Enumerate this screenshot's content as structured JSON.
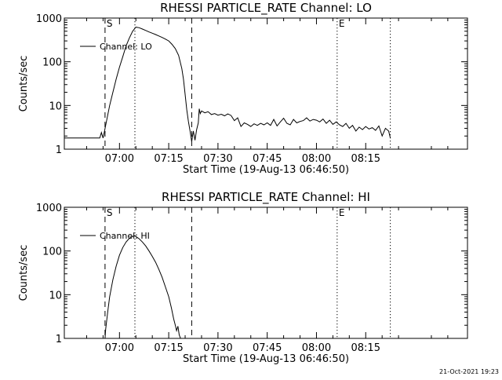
{
  "footer": {
    "timestamp": "21-Oct-2021 19:23"
  },
  "chart_data": [
    {
      "type": "line",
      "title": "RHESSI PARTICLE_RATE Channel: LO",
      "xlabel": "Start Time (19-Aug-13 06:46:50)",
      "ylabel": "Counts/sec",
      "yscale": "log",
      "ylim": [
        1,
        1000
      ],
      "xlim_minutes": [
        -16.8,
        106
      ],
      "x_ticks": [
        {
          "t": 0,
          "label": "07:00"
        },
        {
          "t": 15,
          "label": "07:15"
        },
        {
          "t": 30,
          "label": "07:30"
        },
        {
          "t": 45,
          "label": "07:45"
        },
        {
          "t": 60,
          "label": "08:00"
        },
        {
          "t": 75,
          "label": "08:15"
        }
      ],
      "y_ticks": [
        {
          "v": 1,
          "label": "1"
        },
        {
          "v": 10,
          "label": "10"
        },
        {
          "v": 100,
          "label": "100"
        },
        {
          "v": 1000,
          "label": "1000"
        }
      ],
      "legend": {
        "label": "Channel: LO",
        "position": "top-left"
      },
      "markers": [
        {
          "t": -4.4,
          "style": "dashed",
          "label": "S"
        },
        {
          "t": 4.7,
          "style": "dotted",
          "label": ""
        },
        {
          "t": 22.0,
          "style": "dashed",
          "label": ""
        },
        {
          "t": 66.3,
          "style": "dotted",
          "label": "E"
        },
        {
          "t": 82.5,
          "style": "dotted",
          "label": ""
        }
      ],
      "series": [
        {
          "name": "Channel: LO",
          "points": [
            [
              -16.8,
              1.8
            ],
            [
              -11,
              1.8
            ],
            [
              -6,
              1.8
            ],
            [
              -5.5,
              2.4
            ],
            [
              -5,
              1.8
            ],
            [
              -4.6,
              2.5
            ],
            [
              -4.2,
              3.5
            ],
            [
              -3,
              10
            ],
            [
              -2,
              20
            ],
            [
              -1,
              40
            ],
            [
              0,
              75
            ],
            [
              1,
              130
            ],
            [
              2,
              230
            ],
            [
              3,
              350
            ],
            [
              4,
              500
            ],
            [
              5,
              620
            ],
            [
              6,
              600
            ],
            [
              7,
              560
            ],
            [
              8,
              520
            ],
            [
              9,
              480
            ],
            [
              10,
              450
            ],
            [
              11,
              420
            ],
            [
              12,
              390
            ],
            [
              13,
              360
            ],
            [
              14,
              330
            ],
            [
              15,
              300
            ],
            [
              16,
              250
            ],
            [
              17,
              200
            ],
            [
              18,
              140
            ],
            [
              19,
              70
            ],
            [
              19.5,
              40
            ],
            [
              20,
              18
            ],
            [
              20.5,
              8
            ],
            [
              21,
              4.3
            ],
            [
              21.5,
              2.6
            ],
            [
              22,
              1.5
            ],
            [
              22.5,
              2.6
            ],
            [
              23,
              1.6
            ],
            [
              23.5,
              2.8
            ],
            [
              24,
              4
            ],
            [
              24.3,
              8.4
            ],
            [
              24.6,
              6.5
            ],
            [
              25,
              7.5
            ],
            [
              26,
              6.8
            ],
            [
              27,
              7.2
            ],
            [
              28,
              6.2
            ],
            [
              29,
              6.5
            ],
            [
              30,
              6.0
            ],
            [
              31,
              6.3
            ],
            [
              32,
              5.8
            ],
            [
              33,
              6.4
            ],
            [
              34,
              5.9
            ],
            [
              35,
              4.5
            ],
            [
              36,
              5.2
            ],
            [
              37,
              3.3
            ],
            [
              38,
              4.0
            ],
            [
              39,
              3.7
            ],
            [
              40,
              3.3
            ],
            [
              41,
              3.8
            ],
            [
              42,
              3.5
            ],
            [
              43,
              3.9
            ],
            [
              44,
              3.6
            ],
            [
              45,
              4.0
            ],
            [
              46,
              3.5
            ],
            [
              47,
              4.8
            ],
            [
              48,
              3.4
            ],
            [
              49,
              4.2
            ],
            [
              50,
              5.1
            ],
            [
              51,
              3.9
            ],
            [
              52,
              3.6
            ],
            [
              53,
              4.8
            ],
            [
              54,
              4.0
            ],
            [
              55,
              4.3
            ],
            [
              56,
              4.5
            ],
            [
              57,
              5.2
            ],
            [
              58,
              4.4
            ],
            [
              59,
              4.8
            ],
            [
              60,
              4.6
            ],
            [
              61,
              4.2
            ],
            [
              62,
              4.9
            ],
            [
              63,
              3.9
            ],
            [
              64,
              4.6
            ],
            [
              65,
              3.7
            ],
            [
              66,
              4.2
            ],
            [
              67,
              3.6
            ],
            [
              68,
              3.3
            ],
            [
              69,
              3.9
            ],
            [
              70,
              3.0
            ],
            [
              71,
              3.5
            ],
            [
              72,
              2.6
            ],
            [
              73,
              3.2
            ],
            [
              74,
              2.8
            ],
            [
              75,
              3.3
            ],
            [
              76,
              2.9
            ],
            [
              77,
              3.1
            ],
            [
              78,
              2.7
            ],
            [
              79,
              3.4
            ],
            [
              80,
              2.0
            ],
            [
              81,
              3.0
            ],
            [
              82,
              2.6
            ],
            [
              82.5,
              1.8
            ]
          ]
        }
      ]
    },
    {
      "type": "line",
      "title": "RHESSI PARTICLE_RATE Channel: HI",
      "xlabel": "Start Time (19-Aug-13 06:46:50)",
      "ylabel": "Counts/sec",
      "yscale": "log",
      "ylim": [
        1,
        1000
      ],
      "xlim_minutes": [
        -16.8,
        106
      ],
      "x_ticks": [
        {
          "t": 0,
          "label": "07:00"
        },
        {
          "t": 15,
          "label": "07:15"
        },
        {
          "t": 30,
          "label": "07:30"
        },
        {
          "t": 45,
          "label": "07:45"
        },
        {
          "t": 60,
          "label": "08:00"
        },
        {
          "t": 75,
          "label": "08:15"
        }
      ],
      "y_ticks": [
        {
          "v": 1,
          "label": "1"
        },
        {
          "v": 10,
          "label": "10"
        },
        {
          "v": 100,
          "label": "100"
        },
        {
          "v": 1000,
          "label": "1000"
        }
      ],
      "legend": {
        "label": "Channel: HI",
        "position": "top-left"
      },
      "markers": [
        {
          "t": -4.4,
          "style": "dashed",
          "label": "S"
        },
        {
          "t": 4.7,
          "style": "dotted",
          "label": ""
        },
        {
          "t": 22.0,
          "style": "dashed",
          "label": ""
        },
        {
          "t": 66.3,
          "style": "dotted",
          "label": "E"
        },
        {
          "t": 82.5,
          "style": "dotted",
          "label": ""
        }
      ],
      "series": [
        {
          "name": "Channel: HI",
          "points": [
            [
              -4.4,
              1.0
            ],
            [
              -4.2,
              1.6
            ],
            [
              -3.6,
              4
            ],
            [
              -3,
              9
            ],
            [
              -2,
              22
            ],
            [
              -1,
              45
            ],
            [
              0,
              80
            ],
            [
              1,
              120
            ],
            [
              2,
              160
            ],
            [
              3,
              195
            ],
            [
              4,
              215
            ],
            [
              4.7,
              225
            ],
            [
              5,
              215
            ],
            [
              6,
              190
            ],
            [
              7,
              160
            ],
            [
              8,
              130
            ],
            [
              9,
              100
            ],
            [
              10,
              75
            ],
            [
              11,
              55
            ],
            [
              12,
              38
            ],
            [
              13,
              25
            ],
            [
              14,
              15
            ],
            [
              15,
              9
            ],
            [
              15.8,
              5
            ],
            [
              16.5,
              2.8
            ],
            [
              17,
              2
            ],
            [
              17.4,
              1.5
            ],
            [
              17.8,
              1.9
            ],
            [
              18.2,
              1.2
            ],
            [
              18.6,
              1.0
            ]
          ]
        }
      ]
    }
  ]
}
